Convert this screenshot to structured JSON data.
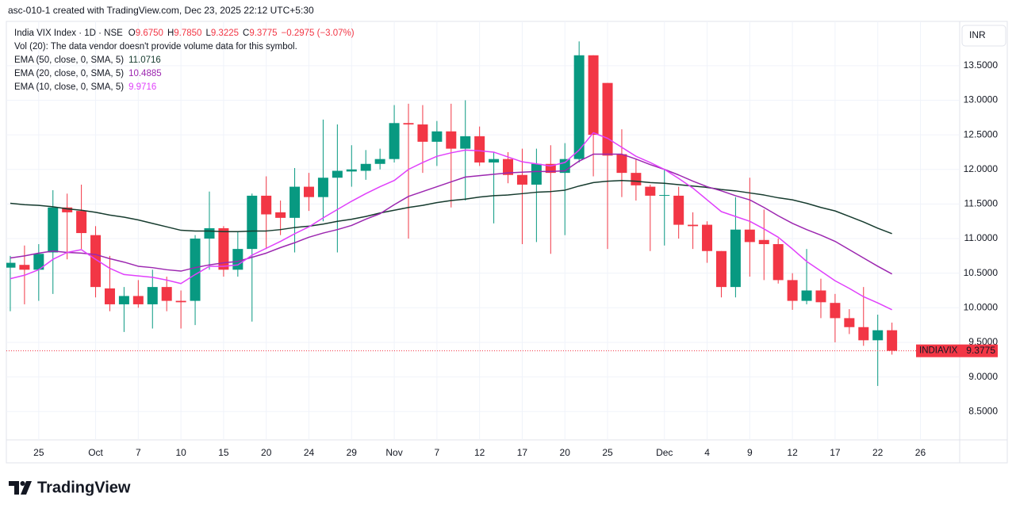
{
  "top_caption": "asc-010-1 created with TradingView.com, Dec 23, 2025 22:12 UTC+5:30",
  "currency_button": "INR",
  "volume_note": "Vol (20): The data vendor doesn't provide volume data for this symbol.",
  "header": {
    "ohlc": [
      {
        "label": "O",
        "value": "9.6750"
      },
      {
        "label": "H",
        "value": "9.7850"
      },
      {
        "label": "L",
        "value": "9.3225"
      },
      {
        "label": "C",
        "value": "9.3775"
      }
    ],
    "change": "−0.2975 (−3.07%)"
  },
  "footer": {
    "logo": "TradingView"
  },
  "chart_data": {
    "type": "candlestick",
    "grid": true,
    "ylim": [
      8.09,
      14.14
    ],
    "yticks": [
      {
        "value": 8.5,
        "label": "8.5000"
      },
      {
        "value": 9,
        "label": "9.0000"
      },
      {
        "value": 9.5,
        "label": "9.5000"
      },
      {
        "value": 10,
        "label": "10.0000"
      },
      {
        "value": 10.5,
        "label": "10.5000"
      },
      {
        "value": 11,
        "label": "11.0000"
      },
      {
        "value": 11.5,
        "label": "11.5000"
      },
      {
        "value": 12,
        "label": "12.0000"
      },
      {
        "value": 12.5,
        "label": "12.5000"
      },
      {
        "value": 13,
        "label": "13.0000"
      },
      {
        "value": 13.5,
        "label": "13.5000"
      }
    ],
    "categories": [
      null,
      null,
      "25",
      null,
      null,
      null,
      "Oct",
      null,
      null,
      "7",
      null,
      null,
      "10",
      null,
      null,
      "15",
      null,
      null,
      "20",
      null,
      null,
      "24",
      null,
      null,
      "29",
      null,
      null,
      "Nov",
      null,
      null,
      "7",
      null,
      null,
      "12",
      null,
      null,
      "17",
      null,
      null,
      "20",
      null,
      null,
      "25",
      null,
      null,
      null,
      "Dec",
      null,
      null,
      "4",
      null,
      null,
      "9",
      null,
      null,
      "12",
      null,
      null,
      "17",
      null,
      null,
      "22",
      null,
      null,
      "26",
      null,
      null
    ],
    "price_label": "INDIAVIX",
    "series": [
      {
        "name": "India VIX Index · 1D · NSE",
        "type": "candlestick",
        "up_color": "#089981",
        "down_color": "#f23645",
        "open": [
          10.58,
          10.62,
          10.55,
          10.8,
          11.45,
          11.4,
          11.05,
          10.28,
          10.05,
          10.17,
          10.05,
          10.3,
          10.1,
          10.1,
          11.0,
          11.15,
          10.55,
          10.85,
          11.62,
          11.38,
          11.3,
          11.75,
          11.6,
          11.88,
          11.97,
          11.98,
          12.08,
          12.15,
          12.67,
          12.65,
          12.4,
          12.55,
          12.3,
          12.48,
          12.1,
          12.15,
          11.92,
          11.78,
          12.08,
          11.95,
          12.15,
          13.65,
          13.25,
          12.22,
          11.95,
          11.75,
          11.62,
          11.62,
          11.2,
          11.2,
          10.82,
          10.3,
          11.13,
          10.98,
          10.92,
          10.4,
          10.1,
          10.25,
          10.07,
          9.85,
          9.72,
          9.53,
          9.675,
          null,
          null,
          null,
          null
        ],
        "high": [
          10.75,
          10.9,
          10.92,
          11.7,
          11.65,
          11.78,
          11.18,
          10.75,
          10.3,
          10.4,
          10.55,
          10.45,
          10.25,
          11.05,
          11.68,
          11.18,
          11.1,
          11.65,
          11.9,
          11.55,
          12.02,
          11.95,
          12.72,
          12.65,
          12.35,
          12.28,
          12.3,
          12.93,
          12.95,
          12.93,
          12.7,
          12.95,
          13.0,
          12.62,
          12.25,
          12.25,
          12.3,
          12.3,
          12.35,
          12.38,
          13.85,
          13.65,
          13.25,
          12.58,
          12.15,
          11.78,
          12.0,
          11.75,
          11.38,
          11.25,
          10.82,
          11.6,
          11.88,
          11.42,
          11.0,
          10.5,
          10.85,
          10.42,
          10.2,
          9.98,
          10.3,
          9.9,
          9.785,
          null,
          null,
          null,
          null
        ],
        "low": [
          9.95,
          10.05,
          10.1,
          10.2,
          10.7,
          10.85,
          10.15,
          9.95,
          9.65,
          10.0,
          9.7,
          9.95,
          9.7,
          9.75,
          10.55,
          10.45,
          10.45,
          9.8,
          10.85,
          11.05,
          10.8,
          11.4,
          11.25,
          10.8,
          11.75,
          11.85,
          12.0,
          12.1,
          11.0,
          11.95,
          12.05,
          11.45,
          11.55,
          12.05,
          11.22,
          11.8,
          10.92,
          10.95,
          10.78,
          11.05,
          12.1,
          11.9,
          10.85,
          11.6,
          11.55,
          10.82,
          10.9,
          11.0,
          10.85,
          10.65,
          10.15,
          10.15,
          10.45,
          10.4,
          10.35,
          9.97,
          10.05,
          9.85,
          9.5,
          9.62,
          9.45,
          8.87,
          9.3225,
          null,
          null,
          null,
          null
        ],
        "close": [
          10.65,
          10.55,
          10.78,
          11.45,
          11.38,
          11.08,
          10.3,
          10.05,
          10.17,
          10.05,
          10.3,
          10.1,
          10.08,
          11.0,
          11.15,
          10.55,
          10.85,
          11.62,
          11.35,
          11.3,
          11.75,
          11.6,
          11.88,
          11.98,
          12.0,
          12.08,
          12.15,
          12.67,
          12.65,
          12.4,
          12.55,
          12.3,
          12.48,
          12.1,
          12.15,
          11.92,
          11.78,
          12.08,
          11.95,
          12.15,
          13.65,
          12.5,
          12.2,
          11.95,
          11.77,
          11.62,
          11.63,
          11.2,
          11.18,
          10.82,
          10.3,
          11.13,
          10.95,
          10.92,
          10.4,
          10.1,
          10.25,
          10.08,
          9.85,
          9.72,
          9.53,
          9.675,
          9.3775,
          null,
          null,
          null,
          null
        ]
      },
      {
        "name": "EMA (50, close, 0, SMA, 5)",
        "type": "line",
        "color": "#163b2e",
        "values": [
          11.51,
          11.49,
          11.48,
          11.46,
          11.43,
          11.41,
          11.38,
          11.34,
          11.31,
          11.27,
          11.22,
          11.17,
          11.12,
          11.11,
          11.11,
          11.1,
          11.1,
          11.11,
          11.11,
          11.13,
          11.16,
          11.18,
          11.21,
          11.25,
          11.28,
          11.32,
          11.37,
          11.41,
          11.45,
          11.48,
          11.52,
          11.55,
          11.57,
          11.6,
          11.62,
          11.63,
          11.65,
          11.67,
          11.68,
          11.7,
          11.76,
          11.81,
          11.83,
          11.84,
          11.83,
          11.81,
          11.8,
          11.78,
          11.76,
          11.74,
          11.71,
          11.69,
          11.66,
          11.63,
          11.59,
          11.56,
          11.51,
          11.45,
          11.4,
          11.32,
          11.24,
          11.15,
          11.0716,
          null,
          null,
          null,
          null
        ]
      },
      {
        "name": "EMA (20, close, 0, SMA, 5)",
        "type": "line",
        "color": "#9c27b0",
        "values": [
          10.72,
          10.75,
          10.79,
          10.82,
          10.8,
          10.79,
          10.77,
          10.71,
          10.66,
          10.6,
          10.58,
          10.55,
          10.53,
          10.58,
          10.62,
          10.65,
          10.67,
          10.73,
          10.79,
          10.87,
          10.94,
          11.02,
          11.08,
          11.13,
          11.19,
          11.28,
          11.36,
          11.49,
          11.61,
          11.68,
          11.75,
          11.82,
          11.89,
          11.91,
          11.93,
          11.95,
          11.96,
          11.97,
          11.97,
          11.98,
          12.12,
          12.22,
          12.22,
          12.22,
          12.15,
          12.07,
          12.0,
          11.92,
          11.83,
          11.75,
          11.69,
          11.62,
          11.56,
          11.45,
          11.33,
          11.22,
          11.13,
          11.05,
          10.96,
          10.84,
          10.72,
          10.6,
          10.4885,
          null,
          null,
          null,
          null
        ]
      },
      {
        "name": "EMA (10, close, 0, SMA, 5)",
        "type": "line",
        "color": "#e040fb",
        "values": [
          10.42,
          10.47,
          10.55,
          10.7,
          10.8,
          10.84,
          10.7,
          10.57,
          10.48,
          10.46,
          10.44,
          10.4,
          10.35,
          10.48,
          10.6,
          10.6,
          10.62,
          10.76,
          10.86,
          10.96,
          11.07,
          11.17,
          11.3,
          11.42,
          11.54,
          11.65,
          11.75,
          11.84,
          12.0,
          12.1,
          12.19,
          12.24,
          12.28,
          12.27,
          12.25,
          12.18,
          12.11,
          12.08,
          12.05,
          12.1,
          12.28,
          12.53,
          12.45,
          12.32,
          12.19,
          12.1,
          12.0,
          11.87,
          11.73,
          11.56,
          11.39,
          11.32,
          11.25,
          11.14,
          11.02,
          10.85,
          10.67,
          10.53,
          10.39,
          10.28,
          10.16,
          10.07,
          9.9716,
          null,
          null,
          null,
          null
        ]
      }
    ]
  }
}
